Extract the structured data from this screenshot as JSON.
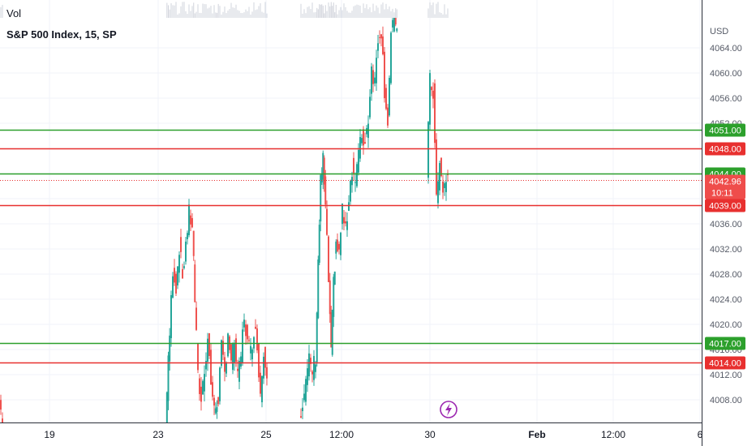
{
  "header": {
    "vol_label": "Vol",
    "title": "S&P 500 Index, 15, SP"
  },
  "axis": {
    "currency_label": "USD"
  },
  "colors": {
    "up": "#26a69a",
    "down": "#ef5350",
    "support": "#2ca02c",
    "resistance": "#e8302f",
    "grid": "#f0f3fa",
    "text": "#131722",
    "axis_text": "#555a66",
    "volume": "#d1d4dc",
    "event": "#9c27b0"
  },
  "chart_data": {
    "type": "candlestick",
    "title": "S&P 500 Index, 15, SP",
    "symbol": "S&P 500 Index",
    "interval": "15",
    "exchange": "SP",
    "currency": "USD",
    "y_range": [
      4004,
      4068
    ],
    "y_ticks": [
      4008,
      4012,
      4016,
      4020,
      4024,
      4028,
      4032,
      4036,
      4040,
      4044,
      4048,
      4052,
      4056,
      4060,
      4064
    ],
    "y_tick_labels": [
      "4008.00",
      "4012.00",
      "4016.00",
      "4020.00",
      "4024.00",
      "4028.00",
      "4032.00",
      "4036.00",
      "4040.00",
      "4044.00",
      "4048.00",
      "4052.00",
      "4056.00",
      "4060.00",
      "4064.00"
    ],
    "x_tick_labels": [
      "19",
      "23",
      "25",
      "12:00",
      "30",
      "Feb",
      "12:00",
      "6"
    ],
    "horizontal_levels": [
      {
        "value": 4051.0,
        "label": "4051.00",
        "kind": "support",
        "color": "#2ca02c"
      },
      {
        "value": 4048.0,
        "label": "4048.00",
        "kind": "resistance",
        "color": "#e8302f"
      },
      {
        "value": 4044.0,
        "label": "4044.00",
        "kind": "support",
        "color": "#2ca02c"
      },
      {
        "value": 4039.0,
        "label": "4039.00",
        "kind": "resistance",
        "color": "#e8302f"
      },
      {
        "value": 4017.0,
        "label": "4017.00",
        "kind": "support",
        "color": "#2ca02c"
      },
      {
        "value": 4014.0,
        "label": "4014.00",
        "kind": "resistance",
        "color": "#e8302f"
      }
    ],
    "last_price": {
      "value": 4042.96,
      "label": "4042.96",
      "countdown": "10:11"
    },
    "event_marker_icon": "lightning-bolt-icon",
    "price_path": [
      [
        0,
        4008.0
      ],
      [
        4,
        4004.5
      ],
      [
        205,
        4004.5
      ],
      [
        210,
        4018.5
      ],
      [
        214,
        4029.0
      ],
      [
        218,
        4026.0
      ],
      [
        222,
        4032.5
      ],
      [
        226,
        4027.5
      ],
      [
        230,
        4033.0
      ],
      [
        234,
        4037.5
      ],
      [
        238,
        4036.0
      ],
      [
        241,
        4024.0
      ],
      [
        245,
        4011.5
      ],
      [
        249,
        4008.0
      ],
      [
        253,
        4013.0
      ],
      [
        257,
        4018.0
      ],
      [
        261,
        4011.0
      ],
      [
        265,
        4006.0
      ],
      [
        270,
        4008.5
      ],
      [
        274,
        4016.0
      ],
      [
        278,
        4012.0
      ],
      [
        282,
        4019.0
      ],
      [
        286,
        4013.5
      ],
      [
        290,
        4017.5
      ],
      [
        294,
        4011.0
      ],
      [
        298,
        4015.0
      ],
      [
        302,
        4021.5
      ],
      [
        306,
        4017.0
      ],
      [
        310,
        4015.5
      ],
      [
        314,
        4019.5
      ],
      [
        318,
        4017.0
      ],
      [
        322,
        4009.0
      ],
      [
        326,
        4015.5
      ],
      [
        330,
        4013.0
      ],
      [
        370,
        4005.0
      ],
      [
        374,
        4008.0
      ],
      [
        378,
        4010.5
      ],
      [
        382,
        4014.0
      ],
      [
        386,
        4012.5
      ],
      [
        390,
        4015.0
      ],
      [
        393,
        4030.0
      ],
      [
        396,
        4042.5
      ],
      [
        399,
        4046.0
      ],
      [
        402,
        4038.5
      ],
      [
        406,
        4027.0
      ],
      [
        409,
        4015.0
      ],
      [
        412,
        4026.5
      ],
      [
        415,
        4033.0
      ],
      [
        419,
        4031.0
      ],
      [
        423,
        4038.5
      ],
      [
        427,
        4034.5
      ],
      [
        431,
        4040.5
      ],
      [
        435,
        4045.0
      ],
      [
        439,
        4043.0
      ],
      [
        443,
        4047.0
      ],
      [
        447,
        4050.0
      ],
      [
        451,
        4049.0
      ],
      [
        455,
        4053.0
      ],
      [
        459,
        4061.0
      ],
      [
        463,
        4058.5
      ],
      [
        467,
        4066.0
      ],
      [
        471,
        4067.0
      ],
      [
        475,
        4057.5
      ],
      [
        479,
        4052.5
      ],
      [
        483,
        4066.0
      ],
      [
        487,
        4068.0
      ],
      [
        490,
        4068.0
      ],
      [
        527,
        4044.5
      ],
      [
        531,
        4058.5
      ],
      [
        535,
        4057.0
      ],
      [
        539,
        4040.0
      ],
      [
        543,
        4045.0
      ],
      [
        547,
        4041.5
      ],
      [
        551,
        4043.0
      ],
      [
        553,
        4042.96
      ]
    ]
  }
}
